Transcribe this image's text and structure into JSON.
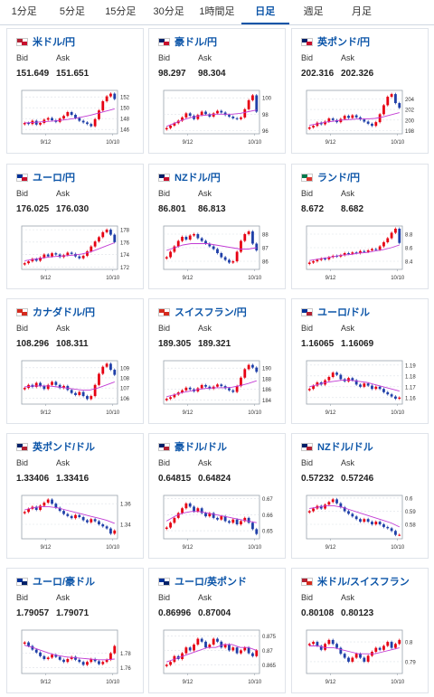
{
  "tabs": [
    {
      "label": "1分足",
      "active": false
    },
    {
      "label": "5分足",
      "active": false
    },
    {
      "label": "15分足",
      "active": false
    },
    {
      "label": "30分足",
      "active": false
    },
    {
      "label": "1時間足",
      "active": false
    },
    {
      "label": "日足",
      "active": true
    },
    {
      "label": "週足",
      "active": false
    },
    {
      "label": "月足",
      "active": false
    }
  ],
  "labels": {
    "bid": "Bid",
    "ask": "Ask"
  },
  "pairs": [
    {
      "name": "米ドル/円",
      "bid": "151.649",
      "ask": "151.651",
      "flag": [
        "#b22234",
        "#c8102e"
      ],
      "chart_data": {
        "type": "candlestick",
        "x_ticks": [
          "9/12",
          "10/10"
        ],
        "y_ticks": [
          "152",
          "150",
          "148",
          "146"
        ],
        "ylim": [
          145.2,
          153.2
        ],
        "trend": [
          147.2,
          147.0,
          147.6,
          146.9,
          147.2,
          147.8,
          148.1,
          147.7,
          147.4,
          148.0,
          148.5,
          149.2,
          148.7,
          148.1,
          147.6,
          147.3,
          147.0,
          146.6,
          147.9,
          149.5,
          151.2,
          152.1,
          152.6,
          151.6
        ],
        "ma": [
          147.2,
          147.3,
          147.4,
          147.5,
          147.6,
          147.8,
          148.0,
          148.3,
          148.6,
          149.0,
          149.4,
          149.8
        ]
      }
    },
    {
      "name": "豪ドル/円",
      "bid": "98.297",
      "ask": "98.304",
      "flag": [
        "#012169",
        "#c8102e"
      ],
      "chart_data": {
        "type": "candlestick",
        "x_ticks": [
          "9/12",
          "10/10"
        ],
        "y_ticks": [
          "100",
          "98",
          "96"
        ],
        "ylim": [
          95.6,
          100.9
        ],
        "trend": [
          96.3,
          96.6,
          96.9,
          97.2,
          97.6,
          98.1,
          97.8,
          97.4,
          97.9,
          98.3,
          98.0,
          97.7,
          98.1,
          98.4,
          98.2,
          97.9,
          97.7,
          97.5,
          97.4,
          97.6,
          98.6,
          99.7,
          100.3,
          98.3
        ],
        "ma": [
          96.5,
          96.9,
          97.3,
          97.6,
          97.8,
          97.9,
          98.0,
          98.0,
          98.0,
          98.1,
          98.3,
          98.5
        ]
      }
    },
    {
      "name": "英ポンド/円",
      "bid": "202.316",
      "ask": "202.326",
      "flag": [
        "#012169",
        "#c8102e"
      ],
      "chart_data": {
        "type": "candlestick",
        "x_ticks": [
          "9/12",
          "10/10"
        ],
        "y_ticks": [
          "204",
          "202",
          "200",
          "198"
        ],
        "ylim": [
          197.4,
          205.6
        ],
        "trend": [
          198.6,
          198.9,
          199.5,
          199.2,
          199.7,
          200.3,
          200.0,
          199.6,
          200.2,
          200.8,
          200.4,
          200.9,
          200.5,
          200.1,
          199.7,
          199.3,
          198.9,
          199.6,
          201.1,
          202.8,
          204.4,
          204.9,
          203.2,
          202.3
        ],
        "ma": [
          199.0,
          199.3,
          199.6,
          199.8,
          200.0,
          200.1,
          200.2,
          200.2,
          200.3,
          200.6,
          201.0,
          201.4
        ]
      }
    },
    {
      "name": "ユーロ/円",
      "bid": "176.025",
      "ask": "176.030",
      "flag": [
        "#003399",
        "#c8102e"
      ],
      "chart_data": {
        "type": "candlestick",
        "x_ticks": [
          "9/12",
          "10/10"
        ],
        "y_ticks": [
          "178",
          "176",
          "174",
          "172"
        ],
        "ylim": [
          171.6,
          178.6
        ],
        "trend": [
          172.6,
          172.9,
          173.3,
          173.0,
          173.5,
          174.0,
          173.7,
          174.2,
          174.0,
          173.6,
          173.9,
          174.3,
          174.1,
          173.7,
          173.4,
          173.8,
          174.5,
          175.3,
          176.1,
          176.8,
          177.6,
          178.0,
          177.2,
          176.0
        ],
        "ma": [
          173.0,
          173.2,
          173.4,
          173.6,
          173.7,
          173.8,
          173.9,
          174.1,
          174.4,
          174.9,
          175.4,
          175.9
        ]
      }
    },
    {
      "name": "NZドル/円",
      "bid": "86.801",
      "ask": "86.813",
      "flag": [
        "#012169",
        "#c8102e"
      ],
      "chart_data": {
        "type": "candlestick",
        "x_ticks": [
          "9/12",
          "10/10"
        ],
        "y_ticks": [
          "88",
          "87",
          "86"
        ],
        "ylim": [
          85.4,
          88.6
        ],
        "trend": [
          86.3,
          86.7,
          87.1,
          87.5,
          87.8,
          87.6,
          87.9,
          88.0,
          87.7,
          87.5,
          87.3,
          87.1,
          86.9,
          86.6,
          86.3,
          86.1,
          85.9,
          86.0,
          86.7,
          87.5,
          88.0,
          88.2,
          87.3,
          86.8
        ],
        "ma": [
          86.8,
          87.0,
          87.2,
          87.3,
          87.3,
          87.3,
          87.2,
          87.1,
          87.0,
          86.9,
          86.9,
          87.0
        ]
      }
    },
    {
      "name": "ランド/円",
      "bid": "8.672",
      "ask": "8.682",
      "flag": [
        "#007a4d",
        "#de3831"
      ],
      "chart_data": {
        "type": "candlestick",
        "x_ticks": [
          "9/12",
          "10/10"
        ],
        "y_ticks": [
          "8.8",
          "8.6",
          "8.4"
        ],
        "ylim": [
          8.28,
          8.92
        ],
        "trend": [
          8.38,
          8.4,
          8.42,
          8.44,
          8.43,
          8.46,
          8.48,
          8.47,
          8.49,
          8.52,
          8.51,
          8.53,
          8.52,
          8.55,
          8.54,
          8.56,
          8.58,
          8.57,
          8.62,
          8.68,
          8.74,
          8.82,
          8.88,
          8.67
        ],
        "ma": [
          8.41,
          8.43,
          8.45,
          8.47,
          8.49,
          8.5,
          8.52,
          8.53,
          8.55,
          8.57,
          8.6,
          8.64
        ]
      }
    },
    {
      "name": "カナダドル/円",
      "bid": "108.296",
      "ask": "108.311",
      "flag": [
        "#d52b1e",
        "#d52b1e"
      ],
      "chart_data": {
        "type": "candlestick",
        "x_ticks": [
          "9/12",
          "10/10"
        ],
        "y_ticks": [
          "109",
          "108",
          "107",
          "106"
        ],
        "ylim": [
          105.4,
          109.7
        ],
        "trend": [
          107.0,
          107.3,
          107.1,
          107.5,
          107.2,
          106.9,
          107.3,
          107.6,
          107.3,
          107.0,
          107.2,
          106.8,
          106.5,
          106.3,
          106.6,
          106.2,
          105.9,
          106.2,
          107.3,
          108.4,
          109.1,
          109.4,
          108.8,
          108.3
        ],
        "ma": [
          107.1,
          107.2,
          107.2,
          107.2,
          107.1,
          107.0,
          106.9,
          106.8,
          106.8,
          107.0,
          107.3,
          107.6
        ]
      }
    },
    {
      "name": "スイスフラン/円",
      "bid": "189.305",
      "ask": "189.321",
      "flag": [
        "#d52b1e",
        "#d52b1e"
      ],
      "chart_data": {
        "type": "candlestick",
        "x_ticks": [
          "9/12",
          "10/10"
        ],
        "y_ticks": [
          "190",
          "188",
          "186",
          "184"
        ],
        "ylim": [
          183.2,
          191.4
        ],
        "trend": [
          184.2,
          184.5,
          185.0,
          185.4,
          185.8,
          186.3,
          186.0,
          185.6,
          186.2,
          186.8,
          186.5,
          186.1,
          186.5,
          186.9,
          186.6,
          186.2,
          185.8,
          185.5,
          186.6,
          188.2,
          189.8,
          190.6,
          190.1,
          189.3
        ],
        "ma": [
          184.6,
          185.0,
          185.4,
          185.7,
          186.0,
          186.2,
          186.3,
          186.3,
          186.4,
          186.7,
          187.1,
          187.6
        ]
      }
    },
    {
      "name": "ユーロ/ドル",
      "bid": "1.16065",
      "ask": "1.16069",
      "flag": [
        "#003399",
        "#b22234"
      ],
      "chart_data": {
        "type": "candlestick",
        "x_ticks": [
          "9/12",
          "10/10"
        ],
        "y_ticks": [
          "1.19",
          "1.18",
          "1.17",
          "1.16"
        ],
        "ylim": [
          1.154,
          1.194
        ],
        "trend": [
          1.168,
          1.171,
          1.174,
          1.172,
          1.176,
          1.179,
          1.183,
          1.181,
          1.177,
          1.175,
          1.178,
          1.176,
          1.172,
          1.17,
          1.173,
          1.171,
          1.168,
          1.17,
          1.168,
          1.165,
          1.163,
          1.161,
          1.159,
          1.16
        ],
        "ma": [
          1.17,
          1.172,
          1.174,
          1.175,
          1.176,
          1.176,
          1.175,
          1.174,
          1.172,
          1.17,
          1.168,
          1.166
        ]
      }
    },
    {
      "name": "英ポンド/ドル",
      "bid": "1.33406",
      "ask": "1.33416",
      "flag": [
        "#012169",
        "#b22234"
      ],
      "chart_data": {
        "type": "candlestick",
        "x_ticks": [
          "9/12",
          "10/10"
        ],
        "y_ticks": [
          "1.36",
          "1.34"
        ],
        "ylim": [
          1.326,
          1.368
        ],
        "trend": [
          1.352,
          1.355,
          1.357,
          1.354,
          1.358,
          1.361,
          1.364,
          1.36,
          1.356,
          1.353,
          1.35,
          1.348,
          1.346,
          1.349,
          1.347,
          1.344,
          1.342,
          1.345,
          1.343,
          1.34,
          1.338,
          1.336,
          1.331,
          1.334
        ],
        "ma": [
          1.354,
          1.356,
          1.357,
          1.357,
          1.356,
          1.354,
          1.352,
          1.35,
          1.348,
          1.346,
          1.344,
          1.341
        ]
      }
    },
    {
      "name": "豪ドル/ドル",
      "bid": "0.64815",
      "ask": "0.64824",
      "flag": [
        "#012169",
        "#b22234"
      ],
      "chart_data": {
        "type": "candlestick",
        "x_ticks": [
          "9/12",
          "10/10"
        ],
        "y_ticks": [
          "0.67",
          "0.66",
          "0.65"
        ],
        "ylim": [
          0.645,
          0.672
        ],
        "trend": [
          0.652,
          0.655,
          0.658,
          0.661,
          0.664,
          0.667,
          0.665,
          0.662,
          0.664,
          0.661,
          0.659,
          0.661,
          0.658,
          0.657,
          0.659,
          0.656,
          0.655,
          0.657,
          0.654,
          0.656,
          0.658,
          0.655,
          0.651,
          0.648
        ],
        "ma": [
          0.656,
          0.659,
          0.661,
          0.662,
          0.662,
          0.661,
          0.66,
          0.659,
          0.658,
          0.657,
          0.656,
          0.655
        ]
      }
    },
    {
      "name": "NZドル/ドル",
      "bid": "0.57232",
      "ask": "0.57246",
      "flag": [
        "#012169",
        "#b22234"
      ],
      "chart_data": {
        "type": "candlestick",
        "x_ticks": [
          "9/12",
          "10/10"
        ],
        "y_ticks": [
          "0.6",
          "0.59",
          "0.58"
        ],
        "ylim": [
          0.569,
          0.602
        ],
        "trend": [
          0.59,
          0.592,
          0.594,
          0.592,
          0.595,
          0.597,
          0.599,
          0.596,
          0.593,
          0.59,
          0.588,
          0.586,
          0.584,
          0.582,
          0.584,
          0.582,
          0.58,
          0.582,
          0.58,
          0.578,
          0.577,
          0.575,
          0.572,
          0.572
        ],
        "ma": [
          0.592,
          0.593,
          0.594,
          0.594,
          0.593,
          0.591,
          0.589,
          0.587,
          0.585,
          0.583,
          0.581,
          0.578
        ]
      }
    },
    {
      "name": "ユーロ/豪ドル",
      "bid": "1.79057",
      "ask": "1.79071",
      "flag": [
        "#003399",
        "#012169"
      ],
      "chart_data": {
        "type": "candlestick",
        "x_ticks": [
          "9/12",
          "10/10"
        ],
        "y_ticks": [
          "1.78",
          "1.76"
        ],
        "ylim": [
          1.752,
          1.812
        ],
        "trend": [
          1.795,
          1.79,
          1.785,
          1.781,
          1.776,
          1.772,
          1.774,
          1.778,
          1.775,
          1.771,
          1.768,
          1.772,
          1.775,
          1.771,
          1.768,
          1.764,
          1.768,
          1.772,
          1.769,
          1.765,
          1.768,
          1.771,
          1.78,
          1.79
        ],
        "ma": [
          1.791,
          1.788,
          1.784,
          1.78,
          1.777,
          1.775,
          1.774,
          1.773,
          1.772,
          1.771,
          1.771,
          1.772
        ]
      }
    },
    {
      "name": "ユーロ/英ポンド",
      "bid": "0.86996",
      "ask": "0.87004",
      "flag": [
        "#003399",
        "#012169"
      ],
      "chart_data": {
        "type": "candlestick",
        "x_ticks": [
          "9/12",
          "10/10"
        ],
        "y_ticks": [
          "0.875",
          "0.87",
          "0.865"
        ],
        "ylim": [
          0.862,
          0.877
        ],
        "trend": [
          0.865,
          0.866,
          0.868,
          0.867,
          0.869,
          0.871,
          0.87,
          0.872,
          0.874,
          0.873,
          0.871,
          0.872,
          0.874,
          0.873,
          0.871,
          0.872,
          0.87,
          0.871,
          0.869,
          0.87,
          0.871,
          0.869,
          0.868,
          0.87
        ],
        "ma": [
          0.866,
          0.867,
          0.868,
          0.869,
          0.87,
          0.871,
          0.871,
          0.872,
          0.872,
          0.871,
          0.871,
          0.87
        ]
      }
    },
    {
      "name": "米ドル/スイスフラン",
      "bid": "0.80108",
      "ask": "0.80123",
      "flag": [
        "#b22234",
        "#d52b1e"
      ],
      "chart_data": {
        "type": "candlestick",
        "x_ticks": [
          "9/12",
          "10/10"
        ],
        "y_ticks": [
          "0.8",
          "0.79"
        ],
        "ylim": [
          0.784,
          0.806
        ],
        "trend": [
          0.799,
          0.8,
          0.798,
          0.796,
          0.799,
          0.801,
          0.799,
          0.797,
          0.794,
          0.792,
          0.79,
          0.792,
          0.794,
          0.792,
          0.79,
          0.793,
          0.795,
          0.797,
          0.796,
          0.798,
          0.8,
          0.797,
          0.799,
          0.801
        ],
        "ma": [
          0.798,
          0.798,
          0.797,
          0.797,
          0.796,
          0.795,
          0.794,
          0.794,
          0.794,
          0.795,
          0.796,
          0.797
        ]
      }
    }
  ]
}
